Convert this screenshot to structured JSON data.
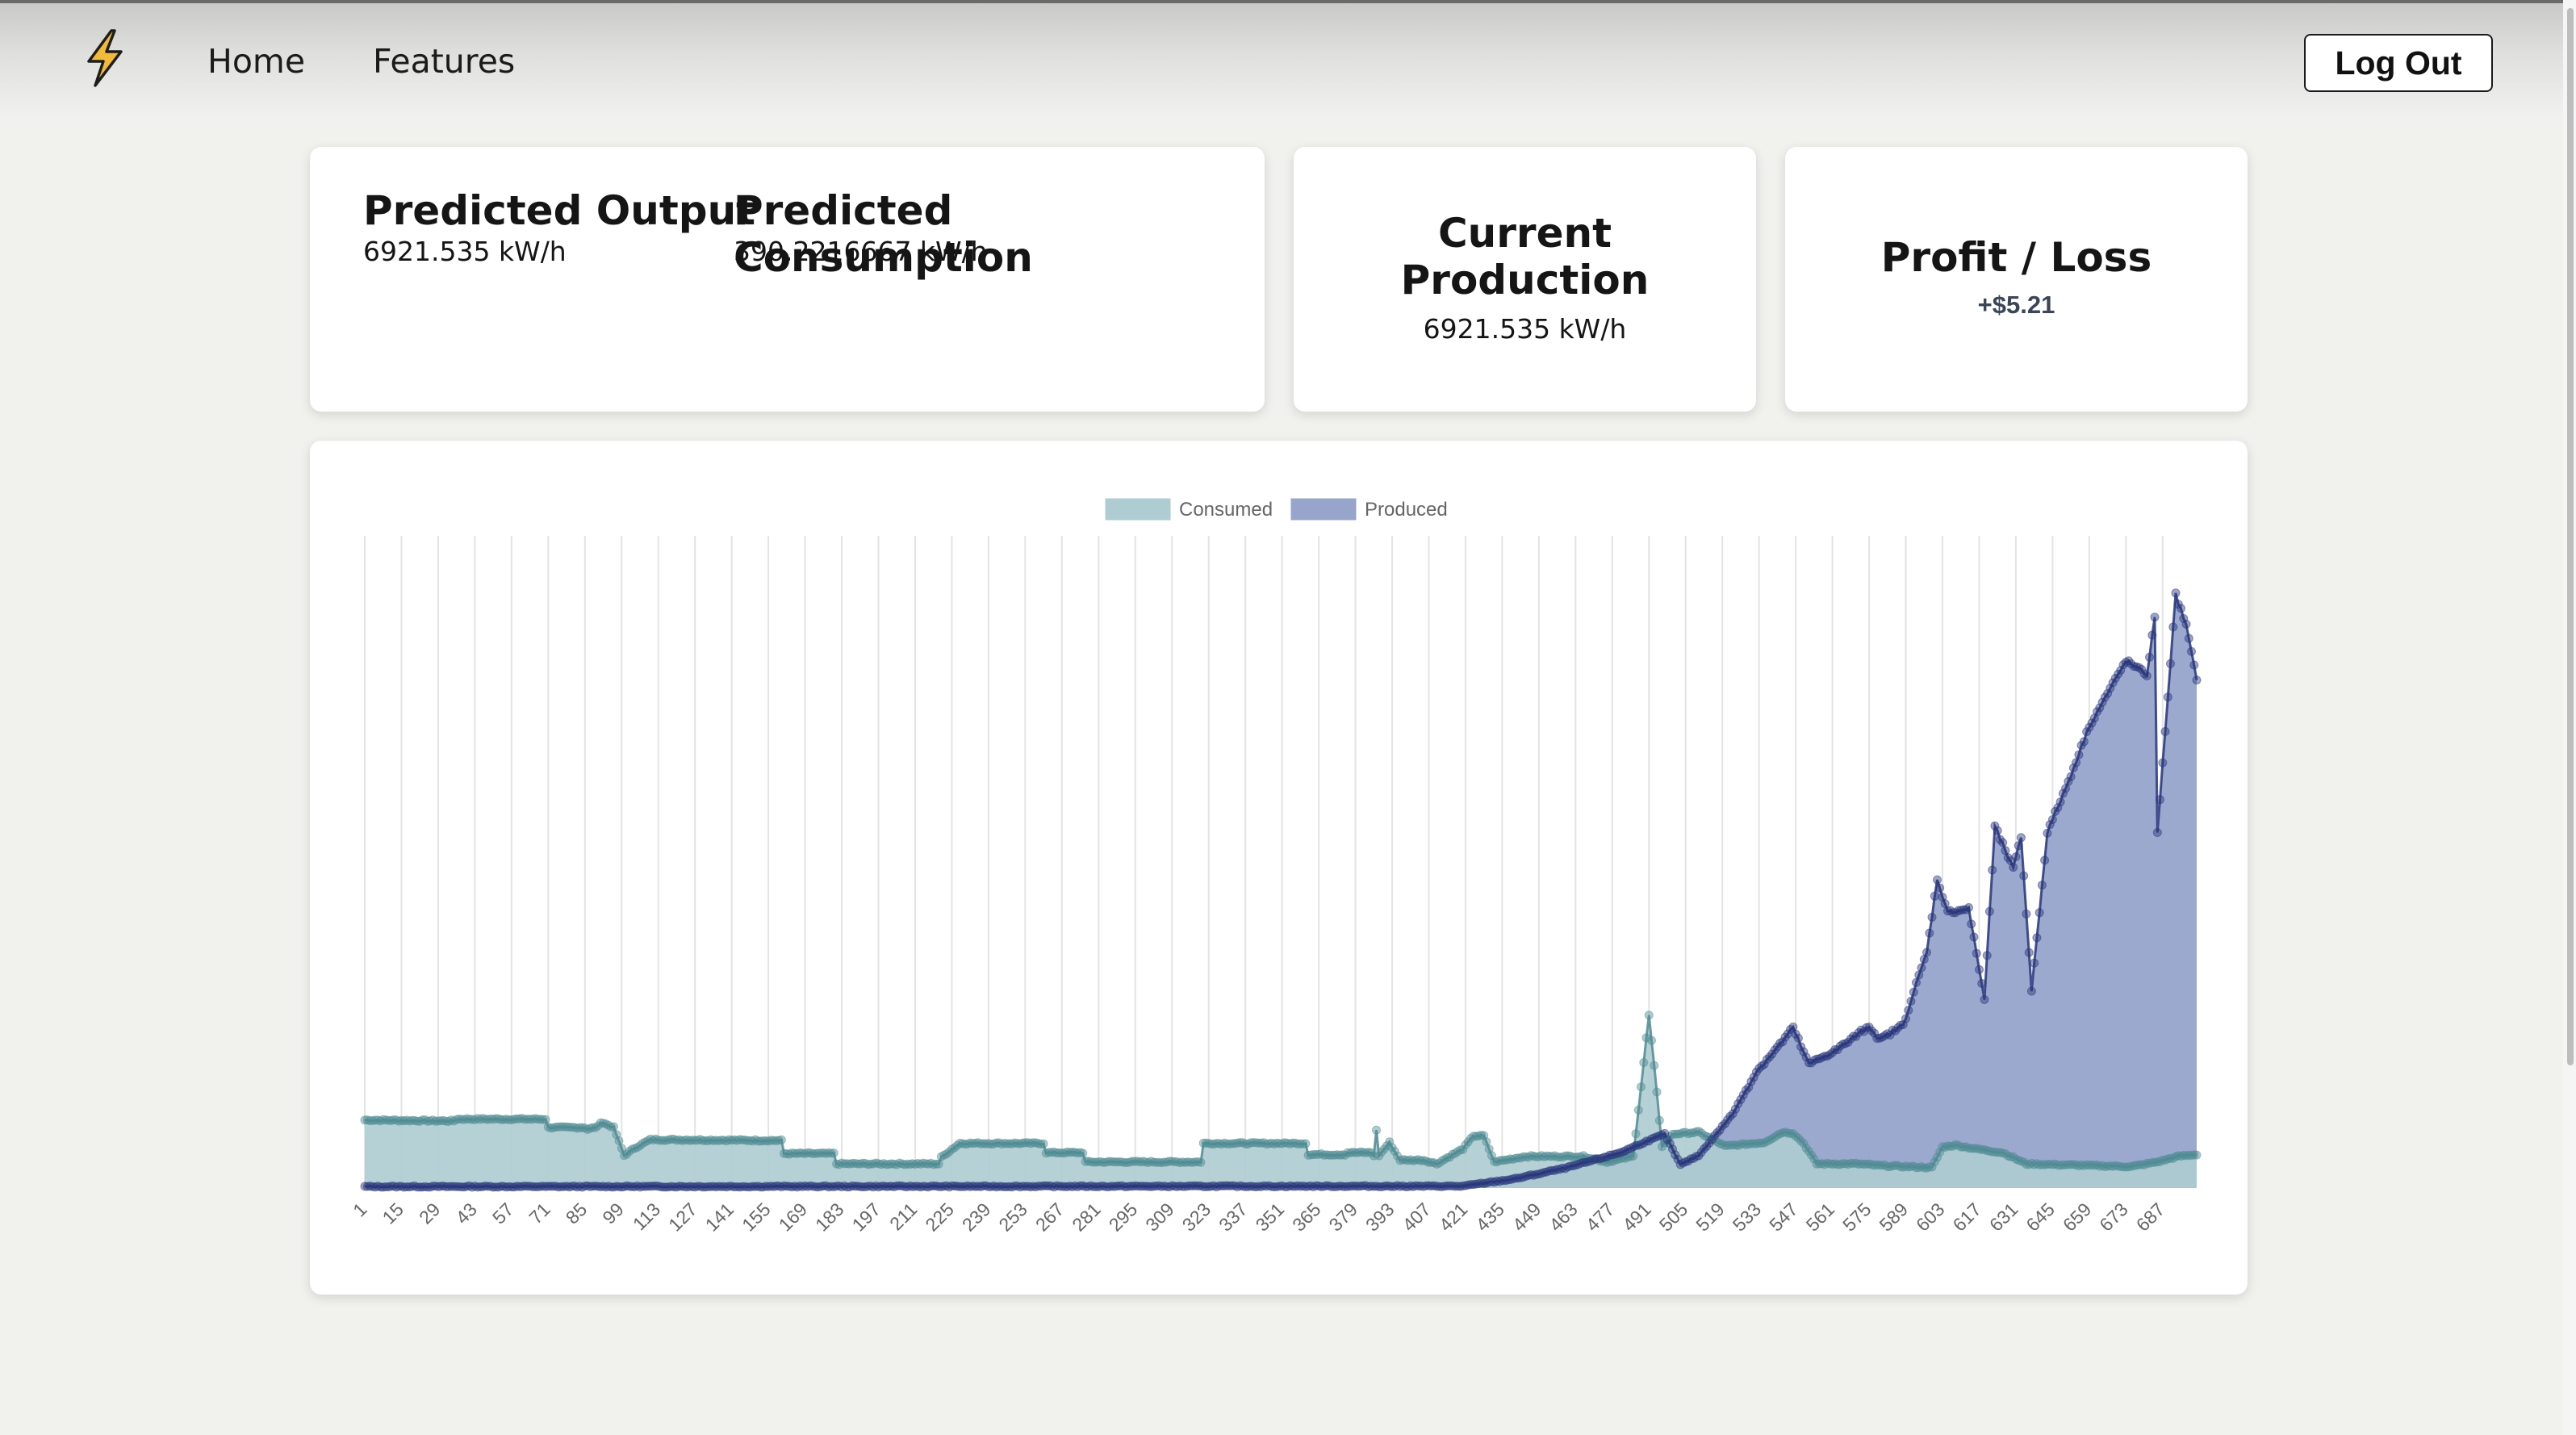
{
  "nav": {
    "logo_icon": "lightning-bolt-icon",
    "home_label": "Home",
    "features_label": "Features",
    "logout_label": "Log Out"
  },
  "cards": {
    "predicted_output": {
      "title": "Predicted Output",
      "value": "6921.535 kW/h"
    },
    "predicted_consumption": {
      "title": "Predicted Consumption",
      "value": "390.2216667 kW/h"
    },
    "current_production": {
      "title_line1": "Current",
      "title_line2": "Production",
      "value": "6921.535 kW/h"
    },
    "profit_loss": {
      "title": "Profit / Loss",
      "value": "+$5.21"
    }
  },
  "colors": {
    "consumed_fill": "#aeccd2",
    "consumed_line": "#4f8c93",
    "produced_fill": "#97a4cc",
    "produced_line": "#27357a"
  },
  "chart_data": {
    "type": "area",
    "title": "",
    "legend": [
      {
        "name": "Consumed",
        "color": "#aeccd2"
      },
      {
        "name": "Produced",
        "color": "#97a4cc"
      }
    ],
    "legend_position": "top-center",
    "x_tick_start": 1,
    "x_tick_step": 14,
    "x_tick_count": 50,
    "n_points": 700,
    "ylim": [
      0,
      7000
    ],
    "grid": "vertical",
    "y_axis_labels": "hidden",
    "series": [
      {
        "name": "Consumed",
        "points": [
          [
            1,
            730
          ],
          [
            35,
            720
          ],
          [
            36,
            740
          ],
          [
            70,
            740
          ],
          [
            71,
            650
          ],
          [
            85,
            650
          ],
          [
            86,
            630
          ],
          [
            90,
            660
          ],
          [
            91,
            710
          ],
          [
            96,
            650
          ],
          [
            100,
            350
          ],
          [
            104,
            430
          ],
          [
            110,
            520
          ],
          [
            160,
            510
          ],
          [
            161,
            370
          ],
          [
            180,
            370
          ],
          [
            181,
            260
          ],
          [
            220,
            260
          ],
          [
            221,
            330
          ],
          [
            228,
            480
          ],
          [
            260,
            480
          ],
          [
            261,
            380
          ],
          [
            275,
            380
          ],
          [
            276,
            280
          ],
          [
            320,
            280
          ],
          [
            321,
            480
          ],
          [
            360,
            480
          ],
          [
            361,
            360
          ],
          [
            375,
            360
          ],
          [
            376,
            380
          ],
          [
            385,
            380
          ],
          [
            386,
            350
          ],
          [
            385,
            1150
          ],
          [
            388,
            350
          ],
          [
            392,
            490
          ],
          [
            396,
            300
          ],
          [
            405,
            300
          ],
          [
            410,
            260
          ],
          [
            420,
            420
          ],
          [
            424,
            560
          ],
          [
            428,
            560
          ],
          [
            432,
            280
          ],
          [
            444,
            340
          ],
          [
            466,
            340
          ],
          [
            475,
            280
          ],
          [
            485,
            340
          ],
          [
            491,
            1850
          ],
          [
            496,
            450
          ],
          [
            500,
            580
          ],
          [
            510,
            600
          ],
          [
            520,
            450
          ],
          [
            535,
            490
          ],
          [
            542,
            600
          ],
          [
            546,
            590
          ],
          [
            550,
            480
          ],
          [
            555,
            260
          ],
          [
            570,
            260
          ],
          [
            580,
            240
          ],
          [
            599,
            220
          ],
          [
            603,
            440
          ],
          [
            608,
            460
          ],
          [
            616,
            420
          ],
          [
            626,
            380
          ],
          [
            635,
            260
          ],
          [
            675,
            230
          ],
          [
            685,
            280
          ],
          [
            693,
            340
          ],
          [
            700,
            360
          ]
        ]
      },
      {
        "name": "Produced",
        "points": [
          [
            1,
            15
          ],
          [
            420,
            20
          ],
          [
            440,
            100
          ],
          [
            460,
            220
          ],
          [
            480,
            380
          ],
          [
            490,
            500
          ],
          [
            497,
            580
          ],
          [
            503,
            250
          ],
          [
            510,
            350
          ],
          [
            523,
            800
          ],
          [
            532,
            1250
          ],
          [
            540,
            1510
          ],
          [
            546,
            1720
          ],
          [
            552,
            1330
          ],
          [
            563,
            1490
          ],
          [
            575,
            1740
          ],
          [
            579,
            1590
          ],
          [
            588,
            1750
          ],
          [
            593,
            2190
          ],
          [
            597,
            2530
          ],
          [
            601,
            3320
          ],
          [
            605,
            2960
          ],
          [
            613,
            3000
          ],
          [
            619,
            2030
          ],
          [
            623,
            3880
          ],
          [
            630,
            3430
          ],
          [
            633,
            3770
          ],
          [
            637,
            2120
          ],
          [
            643,
            3820
          ],
          [
            651,
            4360
          ],
          [
            659,
            4960
          ],
          [
            673,
            5660
          ],
          [
            681,
            5510
          ],
          [
            684,
            6120
          ],
          [
            685,
            3820
          ],
          [
            692,
            6370
          ],
          [
            696,
            6040
          ],
          [
            701,
            5300
          ],
          [
            702,
            6850
          ],
          [
            704,
            6050
          ]
        ]
      }
    ]
  }
}
